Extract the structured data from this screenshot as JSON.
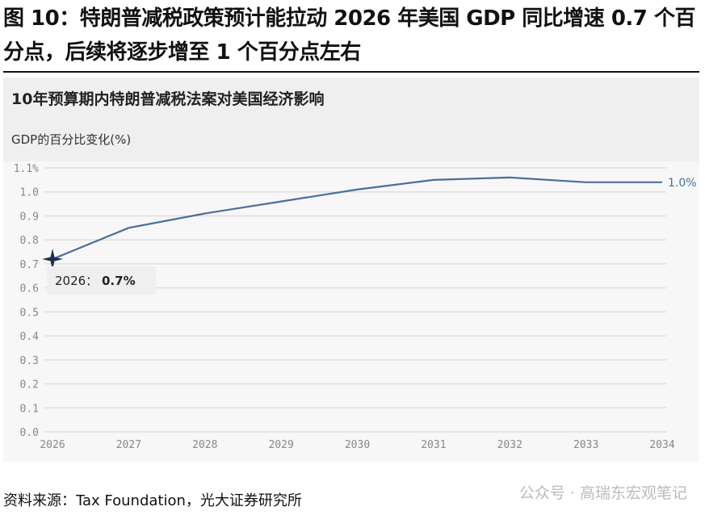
{
  "header": {
    "title": "图 10：特朗普减税政策预计能拉动 2026 年美国 GDP 同比增速 0.7 个百分点，后续将逐步增至 1 个百分点左右"
  },
  "footer": {
    "source": "资料来源：Tax Foundation，光大证券研究所",
    "watermark": "公众号 · 高瑞东宏观笔记"
  },
  "chart_data": {
    "type": "line",
    "title": "10年预算期内特朗普减税法案对美国经济影响",
    "ylabel": "GDP的百分比变化(%)",
    "x": [
      2026,
      2027,
      2028,
      2029,
      2030,
      2031,
      2032,
      2033,
      2034
    ],
    "series": [
      {
        "values": [
          0.72,
          0.85,
          0.91,
          0.96,
          1.01,
          1.05,
          1.06,
          1.04,
          1.04
        ],
        "color": "#4a6f98"
      }
    ],
    "ylim": [
      0,
      1.1
    ],
    "yticks": [
      "0.0",
      "0.1",
      "0.2",
      "0.3",
      "0.4",
      "0.5",
      "0.6",
      "0.7",
      "0.8",
      "0.9",
      "1.0",
      "1.1%"
    ],
    "xticks": [
      "2026",
      "2027",
      "2028",
      "2029",
      "2030",
      "2031",
      "2032",
      "2033",
      "2034"
    ],
    "grid": true,
    "annotations": {
      "start_label": "2026：",
      "start_value": "0.7%",
      "end_label": "1.0%"
    }
  }
}
